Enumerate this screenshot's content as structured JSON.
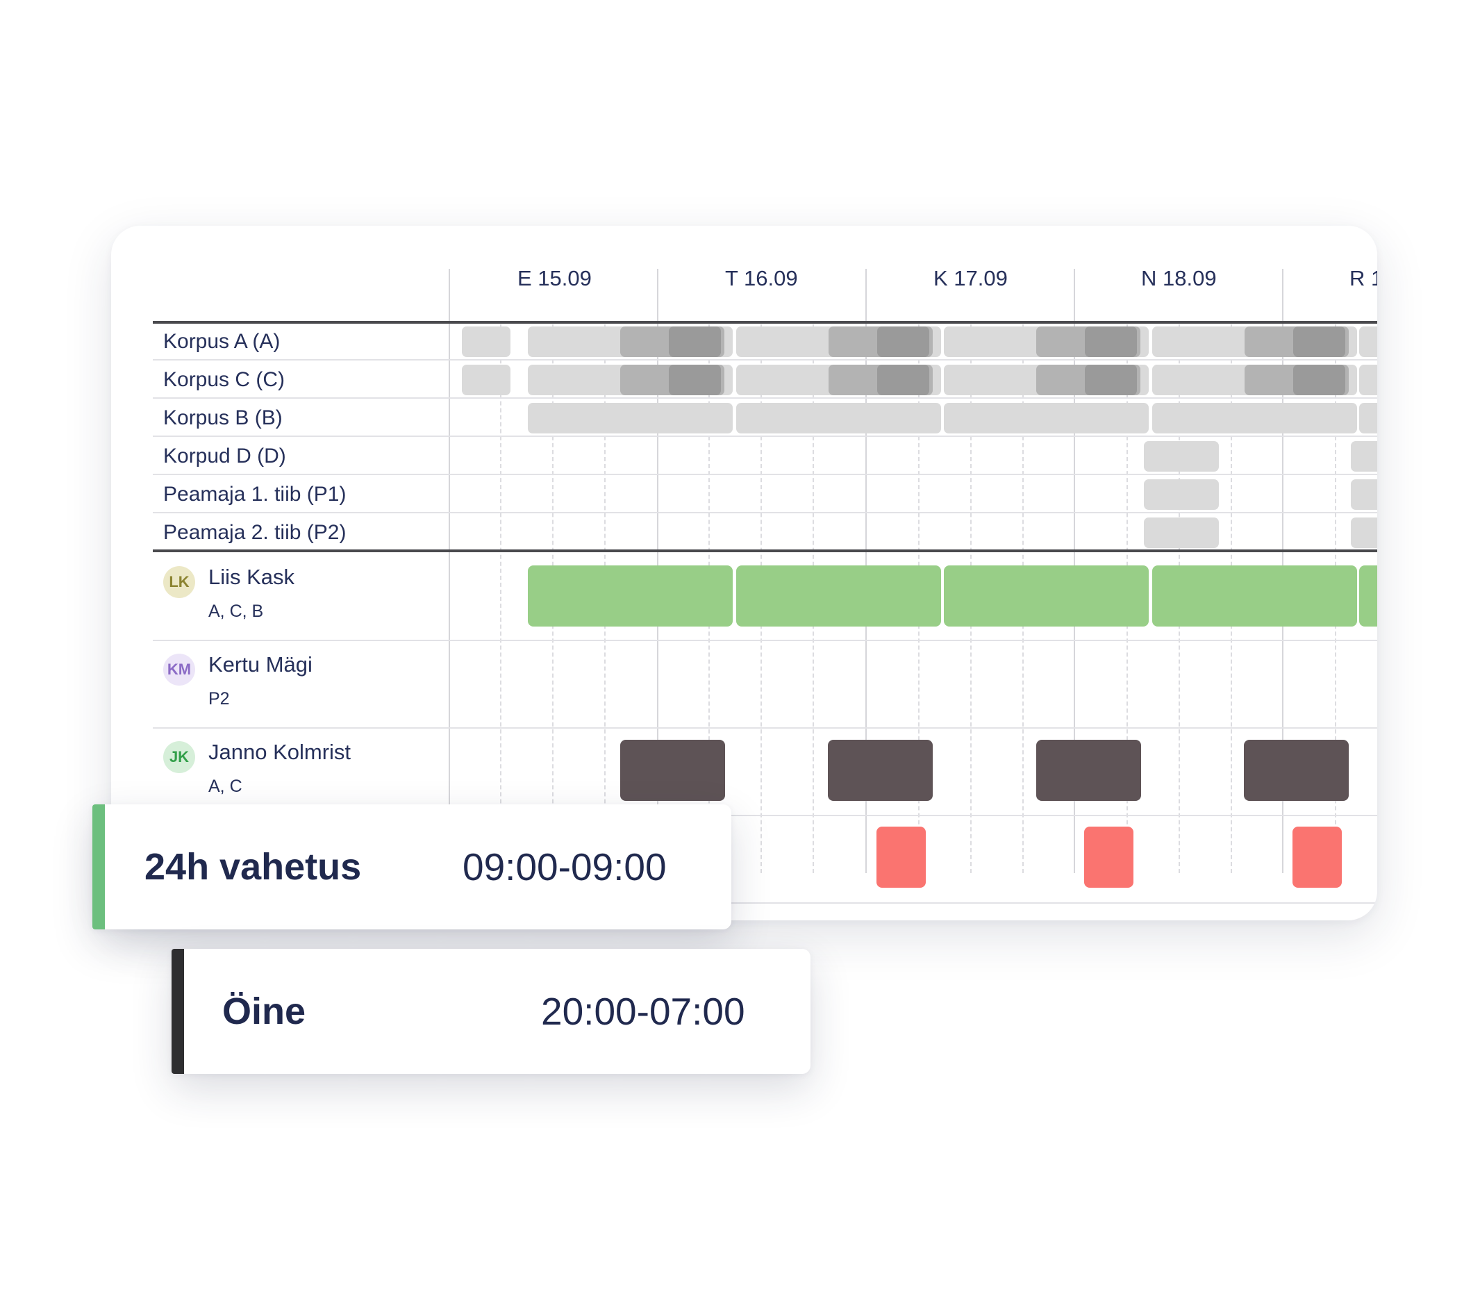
{
  "days": [
    {
      "label": "E 15.09"
    },
    {
      "label": "T 16.09"
    },
    {
      "label": "K 17.09"
    },
    {
      "label": "N 18.09"
    },
    {
      "label": "R 1"
    }
  ],
  "locations": [
    {
      "label": "Korpus A (A)"
    },
    {
      "label": "Korpus C (C)"
    },
    {
      "label": "Korpus B (B)"
    },
    {
      "label": "Korpud D (D)"
    },
    {
      "label": "Peamaja 1. tiib (P1)"
    },
    {
      "label": "Peamaja 2. tiib (P2)"
    }
  ],
  "people": [
    {
      "initials": "LK",
      "name": "Liis Kask",
      "sub": "A, C, B"
    },
    {
      "initials": "KM",
      "name": "Kertu Mägi",
      "sub": "P2"
    },
    {
      "initials": "JK",
      "name": "Janno Kolmrist",
      "sub": "A, C"
    }
  ],
  "popups": {
    "shift_24h": {
      "title": "24h vahetus",
      "time": "09:00-09:00",
      "color": "#6cbf7e"
    },
    "night": {
      "title": "Öine",
      "time": "20:00-07:00",
      "color": "#2e2e30"
    }
  },
  "colors": {
    "coverage_light": "#dadada",
    "coverage_overlap": "#b3b3b3",
    "coverage_dense": "#9a9a9a",
    "shift_24h": "#98ce87",
    "shift_night": "#5e5356",
    "shift_extra": "#fa7470"
  }
}
